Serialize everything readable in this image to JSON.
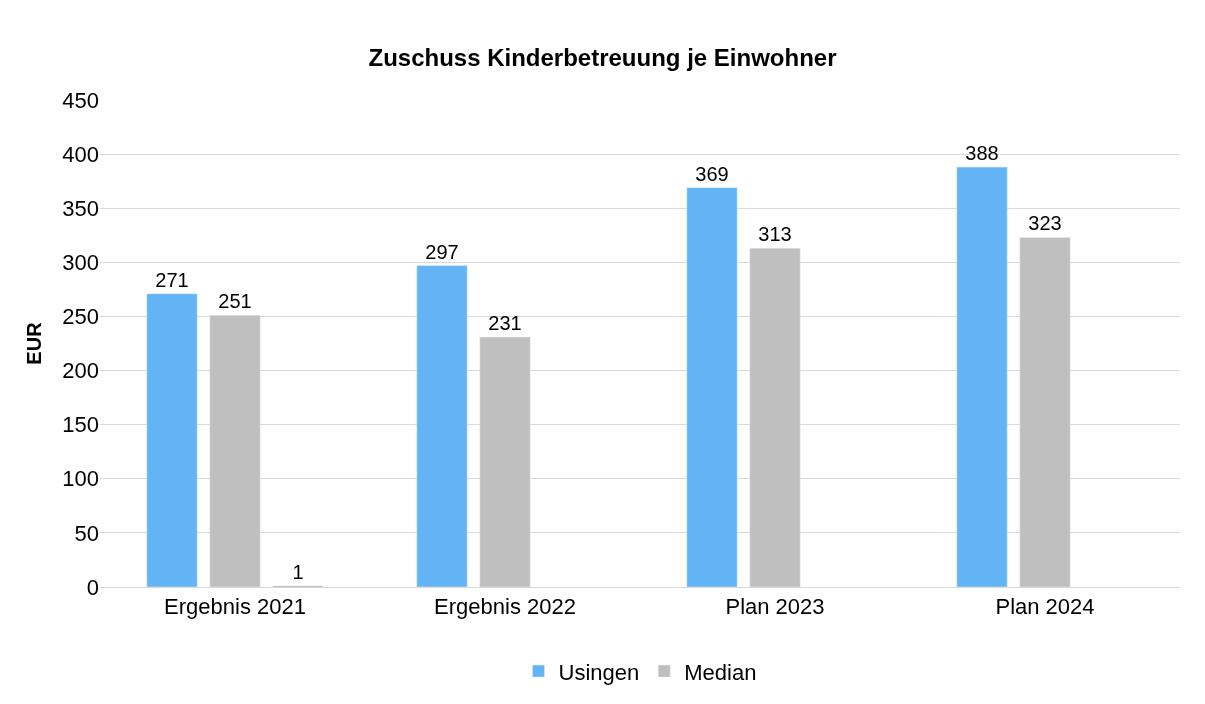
{
  "chart_data": {
    "type": "bar",
    "title": "Zuschuss Kinderbetreuung je Einwohner",
    "ylabel": "EUR",
    "categories": [
      "Ergebnis 2021",
      "Ergebnis 2022",
      "Plan 2023",
      "Plan 2024"
    ],
    "series": [
      {
        "name": "Usingen",
        "color": "#63b4f5",
        "values": [
          271,
          297,
          369,
          388
        ]
      },
      {
        "name": "Median",
        "color": "#bfbfbf",
        "values": [
          251,
          231,
          313,
          323
        ]
      },
      {
        "color": "#a5a5a5",
        "values": [
          1,
          null,
          null,
          null
        ]
      }
    ],
    "ylim": [
      0,
      450
    ],
    "yticks": [
      0,
      50,
      100,
      150,
      200,
      250,
      300,
      350,
      400,
      450
    ],
    "grid": "y",
    "legend": "bottom",
    "data_labels": true
  }
}
